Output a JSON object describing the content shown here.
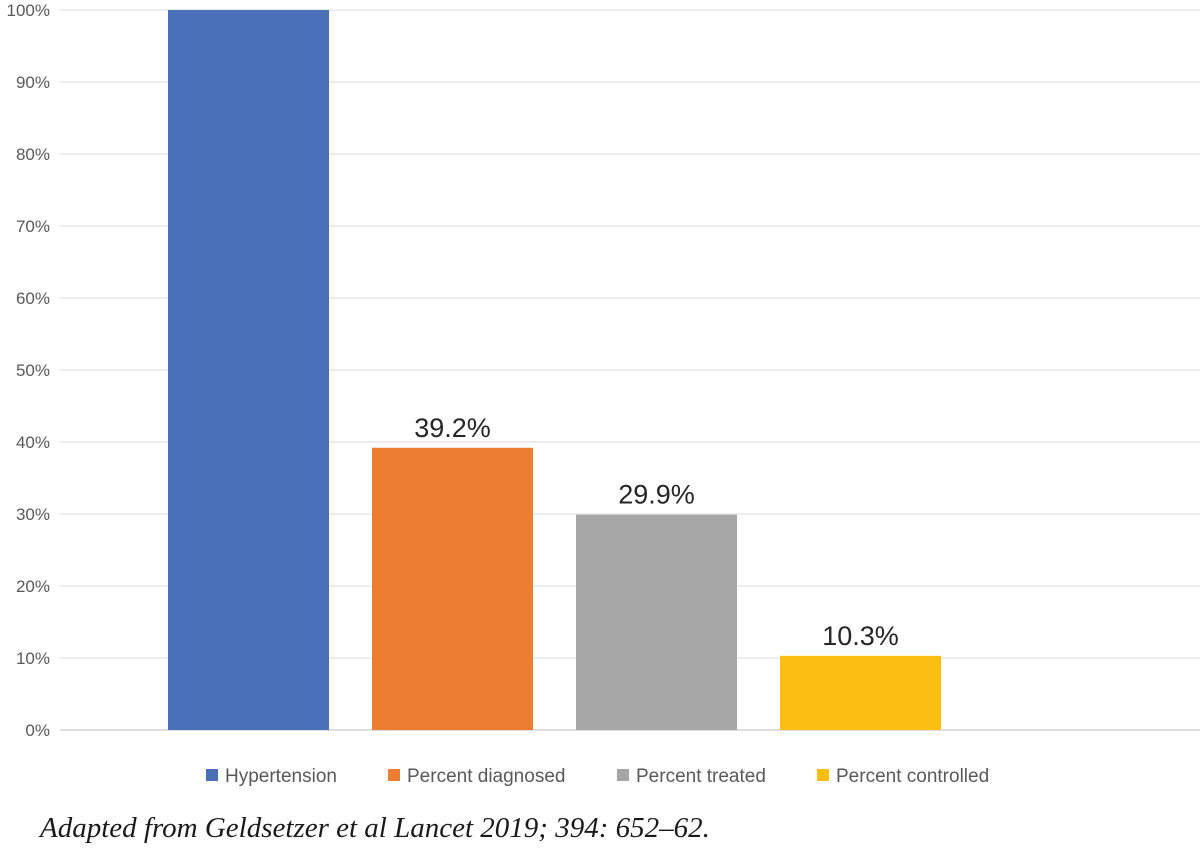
{
  "chart_data": {
    "type": "bar",
    "categories": [
      "Hypertension",
      "Percent diagnosed",
      "Percent treated",
      "Percent controlled"
    ],
    "values": [
      100,
      39.2,
      29.9,
      10.3
    ],
    "data_labels": [
      "",
      "39.2%",
      "29.9%",
      "10.3%"
    ],
    "colors": [
      "#4a70b8",
      "#ec7d31",
      "#a6a6a6",
      "#fcbf11"
    ],
    "ylim": [
      0,
      100
    ],
    "yticks": [
      "0%",
      "10%",
      "20%",
      "30%",
      "40%",
      "50%",
      "60%",
      "70%",
      "80%",
      "90%",
      "100%"
    ],
    "grid": true,
    "legend_position": "bottom",
    "title": "",
    "xlabel": "",
    "ylabel": ""
  },
  "caption": "Adapted from Geldsetzer et al Lancet 2019; 394: 652–62."
}
